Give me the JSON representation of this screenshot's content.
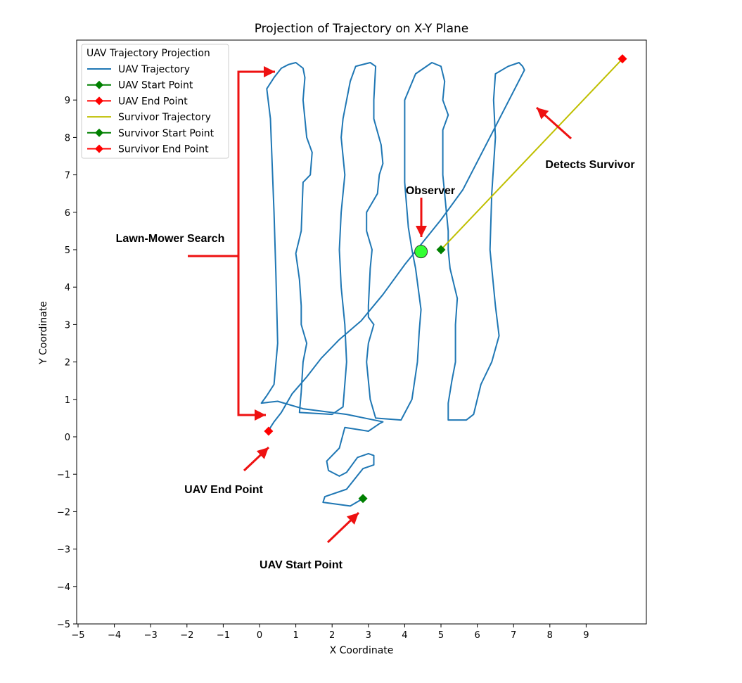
{
  "chart_data": {
    "type": "line",
    "title": "Projection of Trajectory on X-Y Plane",
    "xlabel": "X Coordinate",
    "ylabel": "Y Coordinate",
    "xlim": [
      -5,
      10.5
    ],
    "ylim": [
      -5,
      10.6
    ],
    "x_ticks": [
      -5,
      -4,
      -3,
      -2,
      -1,
      0,
      1,
      2,
      3,
      4,
      5,
      6,
      7,
      8,
      9
    ],
    "y_ticks": [
      -5,
      -4,
      -3,
      -2,
      -1,
      0,
      1,
      2,
      3,
      4,
      5,
      6,
      7,
      8,
      9
    ],
    "x_tick_labels": [
      "−5",
      "−4",
      "−3",
      "−2",
      "−1",
      "0",
      "1",
      "2",
      "3",
      "4",
      "5",
      "6",
      "7",
      "8",
      "9"
    ],
    "y_tick_labels": [
      "−5",
      "−4",
      "−3",
      "−2",
      "−1",
      "0",
      "1",
      "2",
      "3",
      "4",
      "5",
      "6",
      "7",
      "8",
      "9"
    ],
    "grid": false,
    "legend": {
      "title": "UAV Trajectory Projection",
      "placement": "top-left",
      "entries": [
        {
          "label": "UAV Trajectory",
          "color": "#1f77b4",
          "kind": "line"
        },
        {
          "label": "UAV Start Point",
          "color": "#008000",
          "kind": "diamond"
        },
        {
          "label": "UAV End Point",
          "color": "#ff0000",
          "kind": "diamond"
        },
        {
          "label": "Survivor Trajectory",
          "color": "#bfbf00",
          "kind": "line"
        },
        {
          "label": "Survivor Start Point",
          "color": "#008000",
          "kind": "diamond"
        },
        {
          "label": "Survivor End Point",
          "color": "#ff0000",
          "kind": "diamond"
        }
      ]
    },
    "series": [
      {
        "name": "UAV Trajectory",
        "color": "#1f77b4",
        "points": [
          [
            2.85,
            -1.65
          ],
          [
            2.5,
            -1.85
          ],
          [
            1.75,
            -1.75
          ],
          [
            1.8,
            -1.6
          ],
          [
            2.4,
            -1.4
          ],
          [
            2.85,
            -0.85
          ],
          [
            3.15,
            -0.75
          ],
          [
            3.15,
            -0.5
          ],
          [
            3.0,
            -0.45
          ],
          [
            2.7,
            -0.55
          ],
          [
            2.4,
            -0.95
          ],
          [
            2.2,
            -1.05
          ],
          [
            1.9,
            -0.9
          ],
          [
            1.85,
            -0.65
          ],
          [
            2.2,
            -0.3
          ],
          [
            2.35,
            0.25
          ],
          [
            3.0,
            0.15
          ],
          [
            3.3,
            0.35
          ],
          [
            3.4,
            0.4
          ],
          [
            2.4,
            0.6
          ],
          [
            1.2,
            0.75
          ],
          [
            0.5,
            0.95
          ],
          [
            0.05,
            0.9
          ],
          [
            0.2,
            1.1
          ],
          [
            0.4,
            1.4
          ],
          [
            0.5,
            2.5
          ],
          [
            0.45,
            4.4
          ],
          [
            0.4,
            6.0
          ],
          [
            0.3,
            8.5
          ],
          [
            0.2,
            9.3
          ],
          [
            0.4,
            9.6
          ],
          [
            0.6,
            9.85
          ],
          [
            0.8,
            9.95
          ],
          [
            1.0,
            10.0
          ],
          [
            1.2,
            9.85
          ],
          [
            1.25,
            9.6
          ],
          [
            1.2,
            9.0
          ],
          [
            1.3,
            8.0
          ],
          [
            1.45,
            7.6
          ],
          [
            1.4,
            7.0
          ],
          [
            1.2,
            6.8
          ],
          [
            1.15,
            5.5
          ],
          [
            1.0,
            4.9
          ],
          [
            1.1,
            4.2
          ],
          [
            1.15,
            3.5
          ],
          [
            1.15,
            3.0
          ],
          [
            1.3,
            2.5
          ],
          [
            1.2,
            2.0
          ],
          [
            1.15,
            1.2
          ],
          [
            1.1,
            0.65
          ],
          [
            2.0,
            0.6
          ],
          [
            2.3,
            0.8
          ],
          [
            2.4,
            2.0
          ],
          [
            2.35,
            3.0
          ],
          [
            2.25,
            4.0
          ],
          [
            2.2,
            5.0
          ],
          [
            2.25,
            6.0
          ],
          [
            2.35,
            7.0
          ],
          [
            2.25,
            8.0
          ],
          [
            2.3,
            8.5
          ],
          [
            2.5,
            9.5
          ],
          [
            2.65,
            9.9
          ],
          [
            3.05,
            10.0
          ],
          [
            3.2,
            9.9
          ],
          [
            3.15,
            9.0
          ],
          [
            3.15,
            8.5
          ],
          [
            3.35,
            7.8
          ],
          [
            3.4,
            7.3
          ],
          [
            3.3,
            7.0
          ],
          [
            3.25,
            6.5
          ],
          [
            2.95,
            6.0
          ],
          [
            2.95,
            5.5
          ],
          [
            3.1,
            5.0
          ],
          [
            3.05,
            4.5
          ],
          [
            3.0,
            3.5
          ],
          [
            3.0,
            3.2
          ],
          [
            3.15,
            3.0
          ],
          [
            3.0,
            2.5
          ],
          [
            2.95,
            2.0
          ],
          [
            3.05,
            1.0
          ],
          [
            3.2,
            0.5
          ],
          [
            3.9,
            0.45
          ],
          [
            4.2,
            1.0
          ],
          [
            4.35,
            2.0
          ],
          [
            4.4,
            2.8
          ],
          [
            4.45,
            3.4
          ],
          [
            4.3,
            4.5
          ],
          [
            4.2,
            5.0
          ],
          [
            4.1,
            5.6
          ],
          [
            4.0,
            6.8
          ],
          [
            4.0,
            9.0
          ],
          [
            4.3,
            9.7
          ],
          [
            4.75,
            10.0
          ],
          [
            5.0,
            9.9
          ],
          [
            5.1,
            9.5
          ],
          [
            5.05,
            9.0
          ],
          [
            5.2,
            8.6
          ],
          [
            5.05,
            8.2
          ],
          [
            5.05,
            7.0
          ],
          [
            5.1,
            6.5
          ],
          [
            5.2,
            5.5
          ],
          [
            5.2,
            5.0
          ],
          [
            5.25,
            4.5
          ],
          [
            5.45,
            3.7
          ],
          [
            5.4,
            3.0
          ],
          [
            5.4,
            2.0
          ],
          [
            5.3,
            1.5
          ],
          [
            5.2,
            0.9
          ],
          [
            5.2,
            0.45
          ],
          [
            5.7,
            0.45
          ],
          [
            5.9,
            0.6
          ],
          [
            6.1,
            1.4
          ],
          [
            6.4,
            2.0
          ],
          [
            6.6,
            2.7
          ],
          [
            6.5,
            3.5
          ],
          [
            6.35,
            5.0
          ],
          [
            6.4,
            6.5
          ],
          [
            6.5,
            8.0
          ],
          [
            6.45,
            9.0
          ],
          [
            6.5,
            9.7
          ],
          [
            6.85,
            9.9
          ],
          [
            7.15,
            10.0
          ],
          [
            7.25,
            9.9
          ],
          [
            7.3,
            9.8
          ],
          [
            6.4,
            8.1
          ],
          [
            5.6,
            6.6
          ],
          [
            5.0,
            5.8
          ],
          [
            4.5,
            5.2
          ],
          [
            4.0,
            4.6
          ],
          [
            3.4,
            3.8
          ],
          [
            2.8,
            3.1
          ],
          [
            2.2,
            2.6
          ],
          [
            1.7,
            2.1
          ],
          [
            1.3,
            1.6
          ],
          [
            0.9,
            1.15
          ],
          [
            0.6,
            0.65
          ],
          [
            0.4,
            0.4
          ],
          [
            0.3,
            0.25
          ],
          [
            0.25,
            0.15
          ]
        ]
      },
      {
        "name": "Survivor Trajectory",
        "color": "#bfbf00",
        "points": [
          [
            5.0,
            5.0
          ],
          [
            10.0,
            10.1
          ]
        ]
      }
    ],
    "markers": [
      {
        "label": "UAV Start Point",
        "x": 2.85,
        "y": -1.65,
        "color": "#008000"
      },
      {
        "label": "UAV End Point",
        "x": 0.25,
        "y": 0.15,
        "color": "#ff0000"
      },
      {
        "label": "Survivor Start Point",
        "x": 5.0,
        "y": 5.0,
        "color": "#008000"
      },
      {
        "label": "Survivor End Point",
        "x": 10.0,
        "y": 10.1,
        "color": "#ff0000"
      }
    ],
    "observer": {
      "x": 4.45,
      "y": 4.95,
      "color": "#33ff33"
    },
    "annotations": [
      {
        "text": "Lawn-Mower Search"
      },
      {
        "text": "Observer"
      },
      {
        "text": "Detects Survivor"
      },
      {
        "text": "UAV End Point"
      },
      {
        "text": "UAV Start Point"
      }
    ]
  }
}
